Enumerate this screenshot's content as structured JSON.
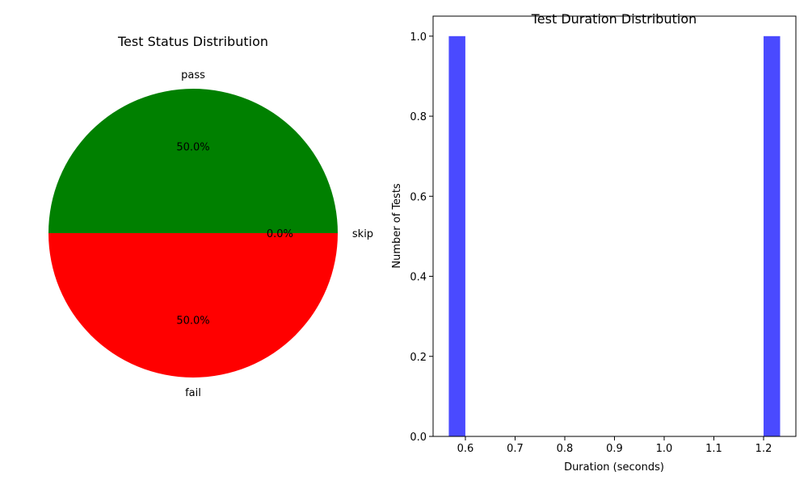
{
  "chart_data": [
    {
      "type": "pie",
      "title": "Test Status Distribution",
      "categories": [
        "pass",
        "fail",
        "skip"
      ],
      "values": [
        1,
        1,
        0
      ],
      "percent_labels": [
        "50.0%",
        "50.0%",
        "0.0%"
      ],
      "colors": [
        "#008000",
        "#ff0000",
        "#0000ff"
      ]
    },
    {
      "type": "bar",
      "title": "Test Duration Distribution",
      "xlabel": "Duration (seconds)",
      "ylabel": "Number of Tests",
      "xlim": [
        0.535,
        1.265
      ],
      "ylim": [
        0.0,
        1.05
      ],
      "xticks": [
        "0.6",
        "0.7",
        "0.8",
        "0.9",
        "1.0",
        "1.1",
        "1.2"
      ],
      "yticks": [
        "0.0",
        "0.2",
        "0.4",
        "0.6",
        "0.8",
        "1.0"
      ],
      "bins": [
        {
          "x0": 0.5666,
          "x1": 0.5999,
          "count": 1
        },
        {
          "x0": 1.2,
          "x1": 1.2333,
          "count": 1
        }
      ],
      "bar_color": "#4a4aff",
      "grid": false
    }
  ]
}
